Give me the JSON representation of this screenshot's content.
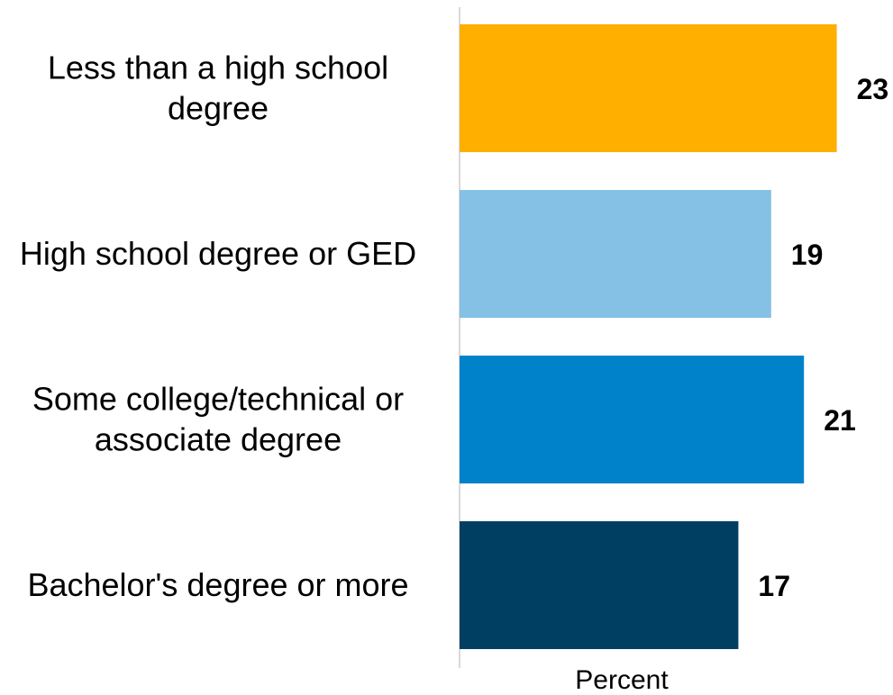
{
  "chart_data": {
    "type": "bar",
    "orientation": "horizontal",
    "categories": [
      [
        "Less than a high school",
        "degree"
      ],
      [
        "High school degree or GED"
      ],
      [
        "Some college/technical or",
        "associate degree"
      ],
      [
        "Bachelor's degree or more"
      ]
    ],
    "values": [
      23,
      19,
      21,
      17
    ],
    "data_labels": [
      "23",
      "19",
      "21",
      "17"
    ],
    "colors": [
      "#FFAF00",
      "#85C1E4",
      "#0082CA",
      "#003F62"
    ],
    "xlabel": "Percent",
    "ylabel": "",
    "title": "",
    "xlim": [
      0,
      25.5
    ],
    "grid": false,
    "legend": "none"
  }
}
